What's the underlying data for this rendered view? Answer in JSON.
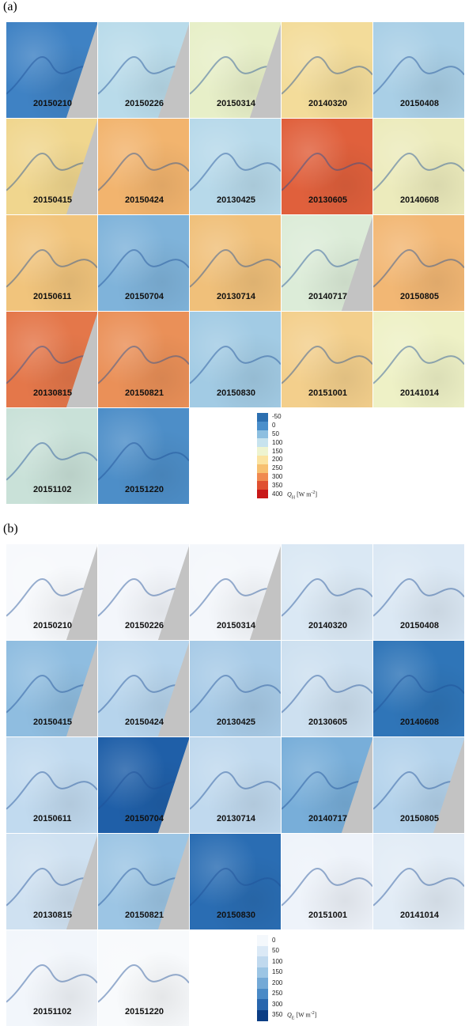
{
  "panels": [
    {
      "label": "(a)",
      "tiles": [
        {
          "date": "20150210",
          "color": "#3f82c4",
          "cut": true
        },
        {
          "date": "20150226",
          "color": "#b9dbea",
          "cut": true
        },
        {
          "date": "20150314",
          "color": "#e7efc8",
          "cut": true
        },
        {
          "date": "20140320",
          "color": "#f3dc9a",
          "cut": false
        },
        {
          "date": "20150408",
          "color": "#a9cfe6",
          "cut": false
        },
        {
          "date": "20150415",
          "color": "#f0d68e",
          "cut": true
        },
        {
          "date": "20150424",
          "color": "#f2b46e",
          "cut": false
        },
        {
          "date": "20130425",
          "color": "#b7d9ea",
          "cut": false
        },
        {
          "date": "20130605",
          "color": "#e0603c",
          "cut": false
        },
        {
          "date": "20140608",
          "color": "#ecebbc",
          "cut": false
        },
        {
          "date": "20150611",
          "color": "#f1c47c",
          "cut": false
        },
        {
          "date": "20150704",
          "color": "#7fb3da",
          "cut": false
        },
        {
          "date": "20130714",
          "color": "#f0c07a",
          "cut": false
        },
        {
          "date": "20140717",
          "color": "#dcecd8",
          "cut": true
        },
        {
          "date": "20150805",
          "color": "#f2b774",
          "cut": false
        },
        {
          "date": "20130815",
          "color": "#e4774a",
          "cut": true
        },
        {
          "date": "20150821",
          "color": "#ea9058",
          "cut": false
        },
        {
          "date": "20150830",
          "color": "#a2cbe4",
          "cut": false
        },
        {
          "date": "20151001",
          "color": "#f3cf8c",
          "cut": false
        },
        {
          "date": "20141014",
          "color": "#eef1c6",
          "cut": false
        },
        {
          "date": "20151102",
          "color": "#c9e1d8",
          "cut": false
        },
        {
          "date": "20151220",
          "color": "#4d8ec8",
          "cut": false
        }
      ],
      "colorbar": {
        "colors": [
          "#2c6fb0",
          "#4a8fcb",
          "#8dbfe0",
          "#c7e3ee",
          "#eef4d0",
          "#fbe3a0",
          "#f7c070",
          "#f08a50",
          "#e05030",
          "#c81818"
        ],
        "ticks": [
          -50,
          0,
          50,
          100,
          150,
          200,
          250,
          300,
          350,
          400
        ],
        "label": {
          "symbol": "Q",
          "sub": "H",
          "unit": "[W m",
          "sup": "-2",
          "close": "]"
        }
      }
    },
    {
      "label": "(b)",
      "tiles": [
        {
          "date": "20150210",
          "color": "#f7f9fc",
          "cut": true
        },
        {
          "date": "20150226",
          "color": "#f3f6fb",
          "cut": true
        },
        {
          "date": "20150314",
          "color": "#f4f7fb",
          "cut": true
        },
        {
          "date": "20140320",
          "color": "#dae8f4",
          "cut": false
        },
        {
          "date": "20150408",
          "color": "#dbe8f4",
          "cut": false
        },
        {
          "date": "20150415",
          "color": "#8fbde0",
          "cut": true
        },
        {
          "date": "20150424",
          "color": "#b6d4ec",
          "cut": true
        },
        {
          "date": "20130425",
          "color": "#a8cbe7",
          "cut": false
        },
        {
          "date": "20130605",
          "color": "#cde0f0",
          "cut": false
        },
        {
          "date": "20140608",
          "color": "#2f75b8",
          "cut": false
        },
        {
          "date": "20150611",
          "color": "#c1daef",
          "cut": false
        },
        {
          "date": "20150704",
          "color": "#1f5fa8",
          "cut": true
        },
        {
          "date": "20130714",
          "color": "#c0d9ee",
          "cut": false
        },
        {
          "date": "20140717",
          "color": "#78aed9",
          "cut": true
        },
        {
          "date": "20150805",
          "color": "#b3d2eb",
          "cut": true
        },
        {
          "date": "20130815",
          "color": "#cfe1f1",
          "cut": true
        },
        {
          "date": "20150821",
          "color": "#9cc5e4",
          "cut": true
        },
        {
          "date": "20150830",
          "color": "#2a6db3",
          "cut": false
        },
        {
          "date": "20151001",
          "color": "#eef3fa",
          "cut": false
        },
        {
          "date": "20141014",
          "color": "#e2ecf6",
          "cut": false
        },
        {
          "date": "20151102",
          "color": "#f2f6fb",
          "cut": false
        },
        {
          "date": "20151220",
          "color": "#f8fafc",
          "cut": false
        }
      ],
      "colorbar": {
        "colors": [
          "#f4f8fc",
          "#dbe9f6",
          "#c0d9ee",
          "#9cc5e4",
          "#74a9d6",
          "#4a8ac6",
          "#2866ad",
          "#0b3d84"
        ],
        "ticks": [
          0,
          50,
          100,
          150,
          200,
          250,
          300,
          350
        ],
        "label": {
          "symbol": "Q",
          "sub": "E",
          "unit": "[W m",
          "sup": "-2",
          "close": "]"
        }
      }
    }
  ]
}
